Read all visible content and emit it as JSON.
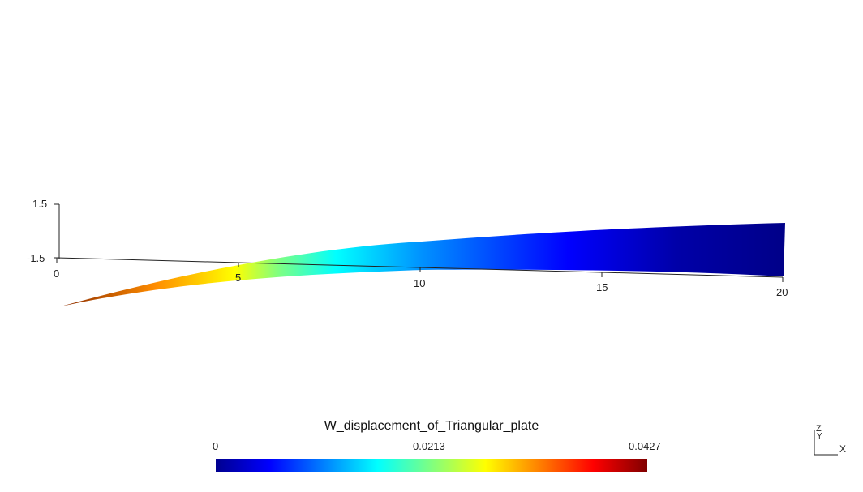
{
  "viewer": {
    "colorbar": {
      "title": "W_displacement_of_Triangular_plate",
      "min_label": "0",
      "mid_label": "0.0213",
      "max_label": "0.0427",
      "colormap": [
        "#00008f",
        "#0000ff",
        "#0080ff",
        "#00ffff",
        "#80ff80",
        "#ffff00",
        "#ff8000",
        "#ff0000",
        "#800000"
      ]
    },
    "axes": {
      "z_ticks": [
        "1.5",
        "-1.5"
      ],
      "x_ticks": [
        "0",
        "5",
        "10",
        "15",
        "20"
      ]
    },
    "triad": {
      "z_label": "Z",
      "y_label": "Y",
      "x_label": "X"
    }
  }
}
